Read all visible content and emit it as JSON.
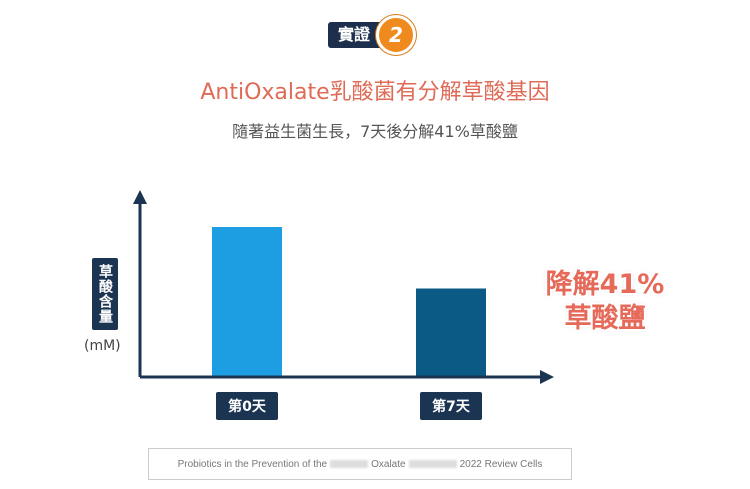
{
  "badge": {
    "label": "實證",
    "number": "2"
  },
  "title": "AntiOxalate乳酸菌有分解草酸基因",
  "subtitle": "隨著益生菌生長，7天後分解41%草酸鹽",
  "annotation": {
    "line1": "降解41%",
    "line2": "草酸鹽"
  },
  "reference": {
    "part1": "Probiotics in the Prevention of the",
    "part2": "Oxalate",
    "part3": "2022 Review Cells"
  },
  "colors": {
    "bar0": "#1d9ee3",
    "bar7": "#0b5a86",
    "axis": "#1b3452",
    "accent": "#df6a55"
  },
  "chart_data": {
    "type": "bar",
    "categories": [
      "第0天",
      "第7天"
    ],
    "values": [
      100,
      59
    ],
    "ylabel": "草酸含量",
    "yunit": "(mM)",
    "ylim": [
      0,
      100
    ],
    "grid": false,
    "legend": "none"
  }
}
